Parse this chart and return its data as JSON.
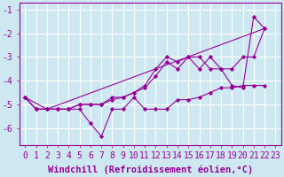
{
  "xlabel": "Windchill (Refroidissement éolien,°C)",
  "background_color": "#cde8f0",
  "grid_color": "#ffffff",
  "line_color": "#990099",
  "xlim": [
    -0.5,
    23.5
  ],
  "ylim": [
    -6.7,
    -0.7
  ],
  "yticks": [
    -6,
    -5,
    -4,
    -3,
    -2,
    -1
  ],
  "xticks": [
    0,
    1,
    2,
    3,
    4,
    5,
    6,
    7,
    8,
    9,
    10,
    11,
    12,
    13,
    14,
    15,
    16,
    17,
    18,
    19,
    20,
    21,
    22,
    23
  ],
  "series": [
    {
      "x": [
        0,
        1,
        2,
        3,
        4,
        5,
        6,
        7,
        8,
        9,
        10,
        11,
        12,
        13,
        14,
        15,
        16,
        17,
        18,
        19,
        20,
        21,
        22
      ],
      "y": [
        -4.7,
        -5.2,
        -5.2,
        -5.2,
        -5.2,
        -5.2,
        -5.8,
        -6.35,
        -5.2,
        -5.2,
        -4.7,
        -5.2,
        -5.2,
        -5.2,
        -4.8,
        -4.8,
        -4.7,
        -4.5,
        -4.3,
        -4.3,
        -4.2,
        -4.2,
        -4.2
      ]
    },
    {
      "x": [
        0,
        1,
        2,
        3,
        4,
        5,
        6,
        7,
        8,
        9,
        10,
        11,
        12,
        13,
        14,
        15,
        16,
        17,
        18,
        19,
        20,
        21,
        22
      ],
      "y": [
        -4.7,
        -5.2,
        -5.2,
        -5.2,
        -5.2,
        -5.0,
        -5.0,
        -5.0,
        -4.7,
        -4.7,
        -4.5,
        -4.3,
        -3.8,
        -3.2,
        -3.5,
        -3.0,
        -3.0,
        -3.5,
        -3.5,
        -3.5,
        -3.0,
        -3.0,
        -1.8
      ]
    },
    {
      "x": [
        0,
        1,
        2,
        3,
        4,
        5,
        6,
        7,
        8,
        9,
        10,
        11,
        12,
        13,
        14,
        15,
        16,
        17,
        18,
        19,
        20,
        21,
        22
      ],
      "y": [
        -4.7,
        -5.2,
        -5.2,
        -5.2,
        -5.2,
        -5.0,
        -5.0,
        -5.0,
        -4.8,
        -4.7,
        -4.5,
        -4.2,
        -3.5,
        -3.0,
        -3.2,
        -3.0,
        -3.5,
        -3.0,
        -3.5,
        -4.2,
        -4.3,
        -1.3,
        -1.8
      ]
    },
    {
      "x": [
        0,
        2,
        22
      ],
      "y": [
        -4.7,
        -5.2,
        -1.8
      ]
    }
  ],
  "xlabel_fontsize": 7.5,
  "tick_fontsize": 7.0
}
